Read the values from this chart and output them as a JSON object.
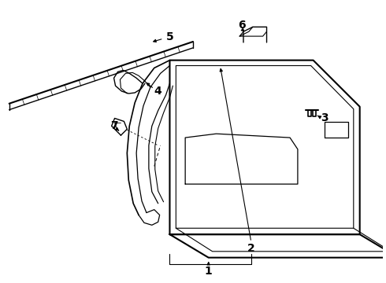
{
  "background_color": "#ffffff",
  "line_color": "#000000",
  "fig_width": 4.9,
  "fig_height": 3.6,
  "dpi": 100,
  "label_fontsize": 10,
  "label_fontweight": "bold"
}
